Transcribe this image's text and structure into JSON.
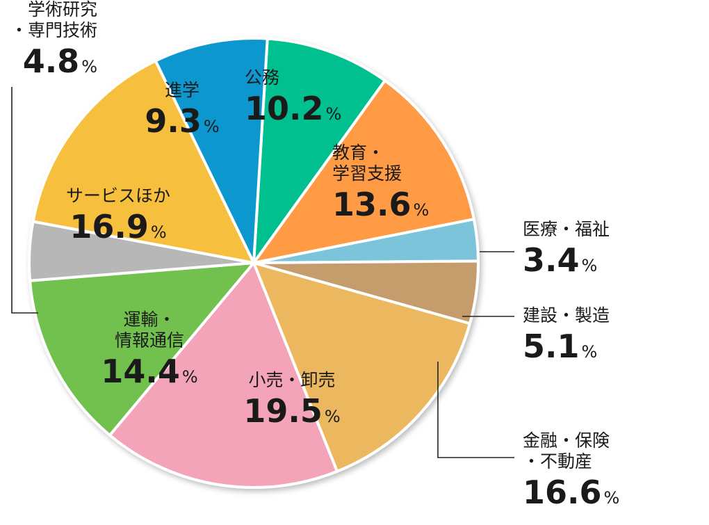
{
  "chart_data": {
    "type": "pie",
    "start_direction": "right-of-top, clockwise",
    "unit": "%",
    "slices": [
      {
        "label": "公務",
        "value": 10.2,
        "color": "#00c08f",
        "name_lines": [
          "公務"
        ]
      },
      {
        "label": "教育・学習支援",
        "value": 13.6,
        "color": "#ff9a45",
        "name_lines": [
          "教育・",
          "学習支援"
        ]
      },
      {
        "label": "医療・福祉",
        "value": 3.4,
        "color": "#7cc4da",
        "name_lines": [
          "医療・福祉"
        ]
      },
      {
        "label": "建設・製造",
        "value": 5.1,
        "color": "#c59d6c",
        "name_lines": [
          "建設・製造"
        ]
      },
      {
        "label": "金融・保険・不動産",
        "value": 16.6,
        "color": "#ebb85f",
        "name_lines": [
          "金融・保険",
          "・不動産"
        ]
      },
      {
        "label": "小売・卸売",
        "value": 19.5,
        "color": "#f4a4b9",
        "name_lines": [
          "小売・卸売"
        ]
      },
      {
        "label": "運輸・情報通信",
        "value": 14.4,
        "color": "#72c14f",
        "name_lines": [
          "運輸・",
          "情報通信"
        ]
      },
      {
        "label": "学術研究・専門技術",
        "value": 4.8,
        "color": "#b7b7b7",
        "name_lines": [
          "学術研究",
          "・専門技術"
        ]
      },
      {
        "label": "サービスほか",
        "value": 16.9,
        "color": "#f6bf3c",
        "name_lines": [
          "サービスほか"
        ]
      },
      {
        "label": "進学",
        "value": 9.3,
        "color": "#0b97cf",
        "name_lines": [
          "進学"
        ]
      }
    ]
  }
}
